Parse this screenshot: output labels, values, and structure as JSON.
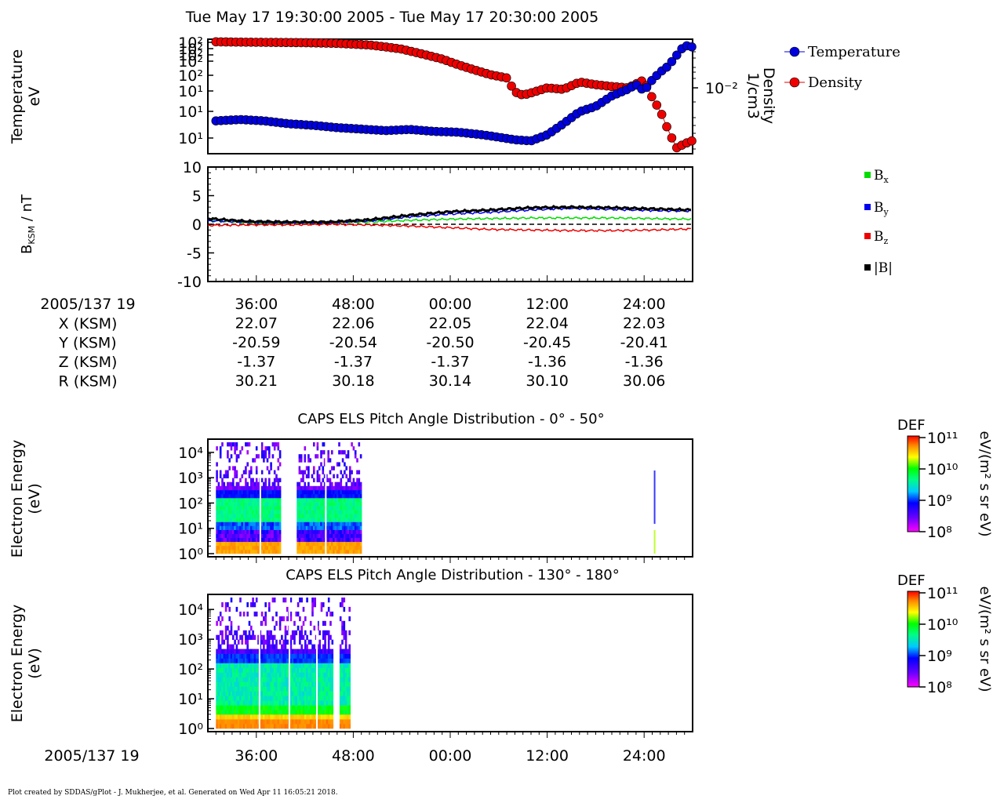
{
  "header": {
    "title": "Tue May 17 19:30:00 2005 - Tue May 17 20:30:00 2005"
  },
  "footer": {
    "text": "Plot created by SDDAS/gPlot - J. Mukherjee, et al.  Generated on Wed Apr 11 16:05:21 2018."
  },
  "colors": {
    "temperature": "#0000dd",
    "density": "#ee0000",
    "bx": "#00dd00",
    "by": "#0000ee",
    "bz": "#ee0000",
    "bmag": "#000000"
  },
  "chart_data": [
    {
      "type": "line",
      "id": "plasma",
      "ylabel": [
        "Temperature",
        "eV"
      ],
      "ylabel_right": [
        "Density",
        "1/cm3"
      ],
      "left_ticks": [
        "10²",
        "10²",
        "10²",
        "10²",
        "10²",
        "10¹",
        "10¹",
        "10¹"
      ],
      "right_ticks": [
        "10⁻²"
      ],
      "legend": [
        {
          "name": "Temperature",
          "color": "#0000dd"
        },
        {
          "name": "Density",
          "color": "#ee0000"
        }
      ],
      "x_minutes": [
        0,
        60
      ],
      "series": [
        {
          "name": "Temperature",
          "points": [
            [
              1,
              10
            ],
            [
              4,
              10.5
            ],
            [
              7,
              10
            ],
            [
              10,
              9
            ],
            [
              13,
              8.5
            ],
            [
              16,
              7.8
            ],
            [
              19,
              7.4
            ],
            [
              22,
              7
            ],
            [
              25,
              7.3
            ],
            [
              28,
              6.8
            ],
            [
              31,
              6.6
            ],
            [
              34,
              6
            ],
            [
              36,
              5.5
            ],
            [
              38,
              5
            ],
            [
              40,
              4.8
            ],
            [
              42,
              6
            ],
            [
              44,
              9
            ],
            [
              46,
              14
            ],
            [
              48,
              17
            ],
            [
              50,
              25
            ],
            [
              52,
              32
            ],
            [
              53,
              38
            ],
            [
              54,
              30
            ],
            [
              55,
              45
            ],
            [
              56,
              60
            ],
            [
              57,
              75
            ],
            [
              58,
              110
            ],
            [
              59,
              160
            ],
            [
              60,
              150
            ]
          ]
        },
        {
          "name": "Density",
          "points": [
            [
              1,
              0.5
            ],
            [
              4,
              0.49
            ],
            [
              8,
              0.48
            ],
            [
              12,
              0.47
            ],
            [
              16,
              0.45
            ],
            [
              20,
              0.4
            ],
            [
              22,
              0.35
            ],
            [
              24,
              0.3
            ],
            [
              27,
              0.2
            ],
            [
              29,
              0.15
            ],
            [
              31,
              0.1
            ],
            [
              33,
              0.07
            ],
            [
              35,
              0.05
            ],
            [
              37,
              0.04
            ],
            [
              38,
              0.015
            ],
            [
              39,
              0.012
            ],
            [
              40,
              0.014
            ],
            [
              42,
              0.02
            ],
            [
              44,
              0.018
            ],
            [
              46,
              0.03
            ],
            [
              48,
              0.025
            ],
            [
              50,
              0.022
            ],
            [
              52,
              0.02
            ],
            [
              54,
              0.035
            ],
            [
              55,
              0.01
            ],
            [
              56,
              0.004
            ],
            [
              57,
              0.001
            ],
            [
              58,
              0.0003
            ],
            [
              59,
              0.0004
            ],
            [
              60,
              0.0005
            ]
          ]
        }
      ]
    },
    {
      "type": "line",
      "id": "mag",
      "ylabel": "BKSM / nT",
      "ylim": [
        -10,
        10
      ],
      "y_ticks": [
        "10",
        "5",
        "0",
        "-5",
        "-10"
      ],
      "x_minutes": [
        0,
        60
      ],
      "series": [
        {
          "name": "Bx",
          "x": [
            0,
            5,
            10,
            15,
            20,
            25,
            30,
            35,
            40,
            45,
            50,
            55,
            60
          ],
          "values": [
            0.7,
            0.3,
            0.2,
            0.3,
            0.4,
            0.7,
            0.9,
            1.0,
            1.1,
            1.1,
            1.1,
            1.0,
            0.9
          ]
        },
        {
          "name": "By",
          "x": [
            0,
            5,
            10,
            15,
            20,
            25,
            30,
            35,
            40,
            45,
            50,
            55,
            60
          ],
          "values": [
            0.6,
            0.4,
            0.3,
            0.3,
            0.6,
            1.3,
            1.8,
            2.1,
            2.5,
            2.8,
            2.6,
            2.4,
            2.3
          ]
        },
        {
          "name": "Bz",
          "x": [
            0,
            5,
            10,
            15,
            20,
            25,
            30,
            35,
            40,
            45,
            50,
            55,
            60
          ],
          "values": [
            -0.2,
            -0.1,
            -0.1,
            0.0,
            -0.1,
            -0.3,
            -0.6,
            -0.9,
            -1.0,
            -1.1,
            -1.1,
            -1.0,
            -0.8
          ]
        },
        {
          "name": "|B|",
          "x": [
            0,
            5,
            10,
            15,
            20,
            25,
            30,
            35,
            40,
            45,
            50,
            55,
            60
          ],
          "values": [
            1.0,
            0.5,
            0.4,
            0.4,
            0.8,
            1.6,
            2.2,
            2.5,
            2.9,
            3.0,
            2.9,
            2.7,
            2.5
          ]
        }
      ],
      "legend": [
        "Bx",
        "By",
        "Bz",
        "|B|"
      ]
    },
    {
      "type": "heatmap",
      "id": "els1",
      "title": "CAPS ELS Pitch Angle Distribution - 0° - 50°",
      "ylabel": [
        "Electron Energy",
        "(eV)"
      ],
      "y_ticks": [
        "10⁴",
        "10³",
        "10²",
        "10¹",
        "10⁰"
      ],
      "data_intervals_minutes": [
        [
          1,
          9
        ],
        [
          11,
          19
        ]
      ],
      "colorbar": {
        "title": "DEF",
        "unit": "eV/(m² s sr eV)",
        "ticks": [
          "10¹¹",
          "10¹⁰",
          "10⁹",
          "10⁸"
        ]
      }
    },
    {
      "type": "heatmap",
      "id": "els2",
      "title": "CAPS ELS Pitch Angle Distribution - 130° - 180°",
      "ylabel": [
        "Electron Energy",
        "(eV)"
      ],
      "y_ticks": [
        "10⁴",
        "10³",
        "10²",
        "10¹",
        "10⁰"
      ],
      "data_intervals_minutes": [
        [
          1,
          15.5
        ],
        [
          16.3,
          17.6
        ]
      ],
      "colorbar": {
        "title": "DEF",
        "unit": "eV/(m² s sr eV)",
        "ticks": [
          "10¹¹",
          "10¹⁰",
          "10⁹",
          "10⁸"
        ]
      }
    }
  ],
  "ephemeris": {
    "date_label": "2005/137 19",
    "row_labels": [
      "X (KSM)",
      "Y (KSM)",
      "Z (KSM)",
      "R (KSM)"
    ],
    "times": [
      "36:00",
      "48:00",
      "00:00",
      "12:00",
      "24:00"
    ],
    "x": [
      "22.07",
      "22.06",
      "22.05",
      "22.04",
      "22.03"
    ],
    "y": [
      "-20.59",
      "-20.54",
      "-20.50",
      "-20.45",
      "-20.41"
    ],
    "z": [
      "-1.37",
      "-1.37",
      "-1.37",
      "-1.36",
      "-1.36"
    ],
    "r": [
      "30.21",
      "30.18",
      "30.14",
      "30.10",
      "30.06"
    ]
  },
  "bottom_axis": {
    "date_label": "2005/137 19",
    "times": [
      "36:00",
      "48:00",
      "00:00",
      "12:00",
      "24:00"
    ]
  }
}
